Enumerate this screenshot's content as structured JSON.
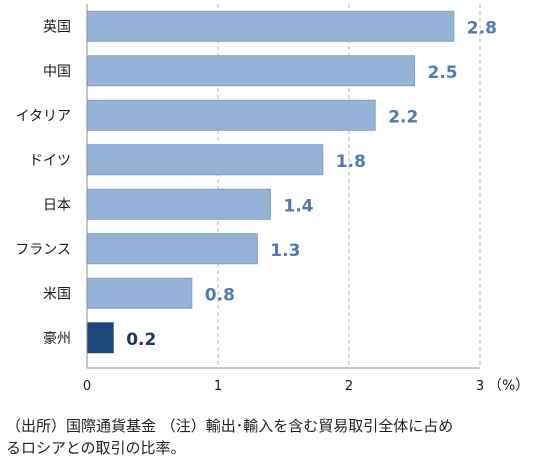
{
  "chart_data": {
    "type": "bar",
    "orientation": "horizontal",
    "categories": [
      "英国",
      "中国",
      "イタリア",
      "ドイツ",
      "日本",
      "フランス",
      "米国",
      "豪州"
    ],
    "values": [
      2.8,
      2.5,
      2.2,
      1.8,
      1.4,
      1.3,
      0.8,
      0.2
    ],
    "data_labels": [
      "2.8",
      "2.5",
      "2.2",
      "1.8",
      "1.4",
      "1.3",
      "0.8",
      "0.2"
    ],
    "highlight_category": "豪州",
    "x_ticks": [
      "0",
      "1",
      "2",
      "3"
    ],
    "xlim": [
      0,
      3
    ],
    "unit_label": "（%）",
    "grid": "vertical dashed",
    "colors": {
      "bar": "#95b3d7",
      "bar_border": "#7f9fc9",
      "highlight": "#1f497d",
      "value_label": "#4f7bb5",
      "highlight_label": "#1f3864"
    }
  },
  "notes": {
    "line1": "（出所）国際通貨基金 （注）輸出･輸入を含む貿易取引全体に占め",
    "line2": "るロシアとの取引の比率。"
  }
}
